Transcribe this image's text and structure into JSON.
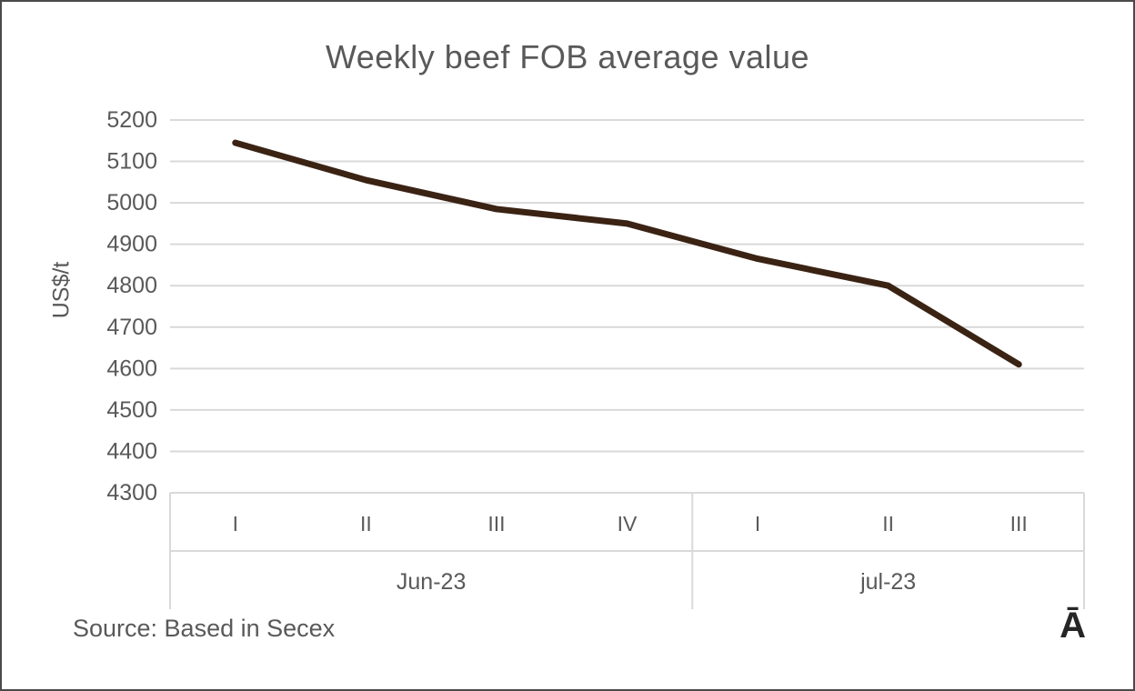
{
  "chart_data": {
    "type": "line",
    "title": "Weekly beef FOB average value",
    "ylabel": "US$/t",
    "ylim": [
      4300,
      5200
    ],
    "ytick_step": 100,
    "categories": [
      "I",
      "II",
      "III",
      "IV",
      "I",
      "II",
      "III"
    ],
    "groups": [
      {
        "label": "Jun-23",
        "span": 4
      },
      {
        "label": "jul-23",
        "span": 3
      }
    ],
    "series": [
      {
        "name": "Weekly beef FOB average value",
        "values": [
          5145,
          5055,
          4985,
          4950,
          4865,
          4800,
          4610
        ]
      }
    ],
    "grid": true,
    "legend": false,
    "colors": {
      "line": "#3b2314",
      "grid": "#d9d9d9",
      "text": "#595959"
    }
  },
  "footer": {
    "source": "Source: Based in Secex",
    "logo": "Ā"
  }
}
